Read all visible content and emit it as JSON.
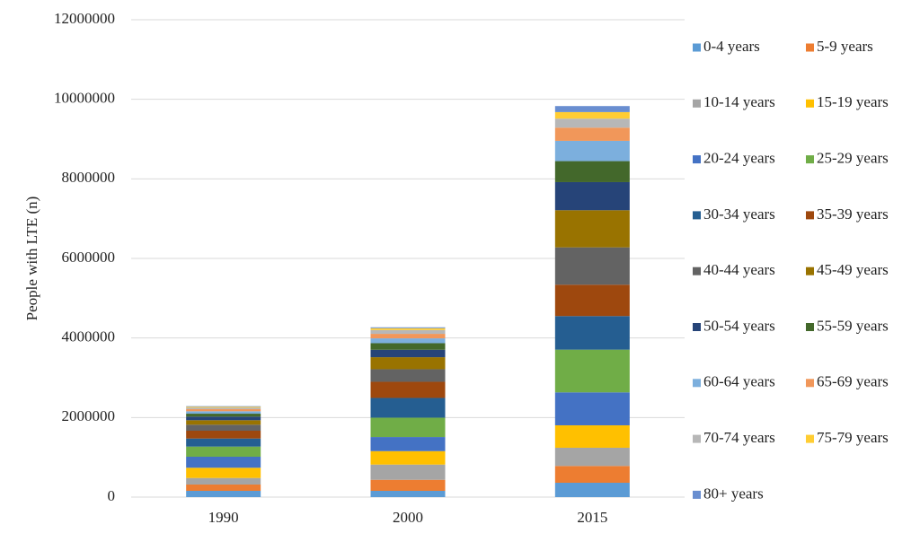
{
  "chart_data": {
    "type": "bar",
    "stacked": true,
    "title": "",
    "xlabel": "",
    "ylabel": "People with LTE (n)",
    "ylim": [
      0,
      12000000
    ],
    "yticks": [
      0,
      2000000,
      4000000,
      6000000,
      8000000,
      10000000,
      12000000
    ],
    "ytick_labels": [
      "0",
      "2000000",
      "4000000",
      "6000000",
      "8000000",
      "10000000",
      "12000000"
    ],
    "grid": true,
    "legend_position": "right",
    "categories": [
      "1990",
      "2000",
      "2015"
    ],
    "series": [
      {
        "name": "0-4 years",
        "color": "#5B9BD5",
        "values": [
          158000,
          158000,
          361000
        ]
      },
      {
        "name": "5-9 years",
        "color": "#ED7D31",
        "values": [
          158000,
          277000,
          422000
        ]
      },
      {
        "name": "10-14 years",
        "color": "#A5A5A5",
        "values": [
          165000,
          383000,
          458000
        ]
      },
      {
        "name": "15-19 years",
        "color": "#FFC000",
        "values": [
          257000,
          338000,
          564000
        ]
      },
      {
        "name": "20-24 years",
        "color": "#4472C4",
        "values": [
          277000,
          354000,
          828000
        ]
      },
      {
        "name": "25-29 years",
        "color": "#70AD47",
        "values": [
          255000,
          487000,
          1074000
        ]
      },
      {
        "name": "30-34 years",
        "color": "#255E91",
        "values": [
          203000,
          496000,
          844000
        ]
      },
      {
        "name": "35-39 years",
        "color": "#9E480E",
        "values": [
          196000,
          406000,
          789000
        ]
      },
      {
        "name": "40-44 years",
        "color": "#636363",
        "values": [
          151000,
          316000,
          938000
        ]
      },
      {
        "name": "45-49 years",
        "color": "#997300",
        "values": [
          113000,
          302000,
          934000
        ]
      },
      {
        "name": "50-54 years",
        "color": "#264478",
        "values": [
          90000,
          187000,
          706000
        ]
      },
      {
        "name": "55-59 years",
        "color": "#43682B",
        "values": [
          74000,
          165000,
          528000
        ]
      },
      {
        "name": "60-64 years",
        "color": "#7CAFDD",
        "values": [
          61000,
          122000,
          510000
        ]
      },
      {
        "name": "65-69 years",
        "color": "#F1975A",
        "values": [
          52000,
          113000,
          332000
        ]
      },
      {
        "name": "70-74 years",
        "color": "#B7B7B7",
        "values": [
          38000,
          97000,
          226000
        ]
      },
      {
        "name": "75-79 years",
        "color": "#FFCD33",
        "values": [
          23000,
          45000,
          165000
        ]
      },
      {
        "name": "80+ years",
        "color": "#698ED0",
        "values": [
          15000,
          23000,
          151000
        ]
      }
    ]
  }
}
